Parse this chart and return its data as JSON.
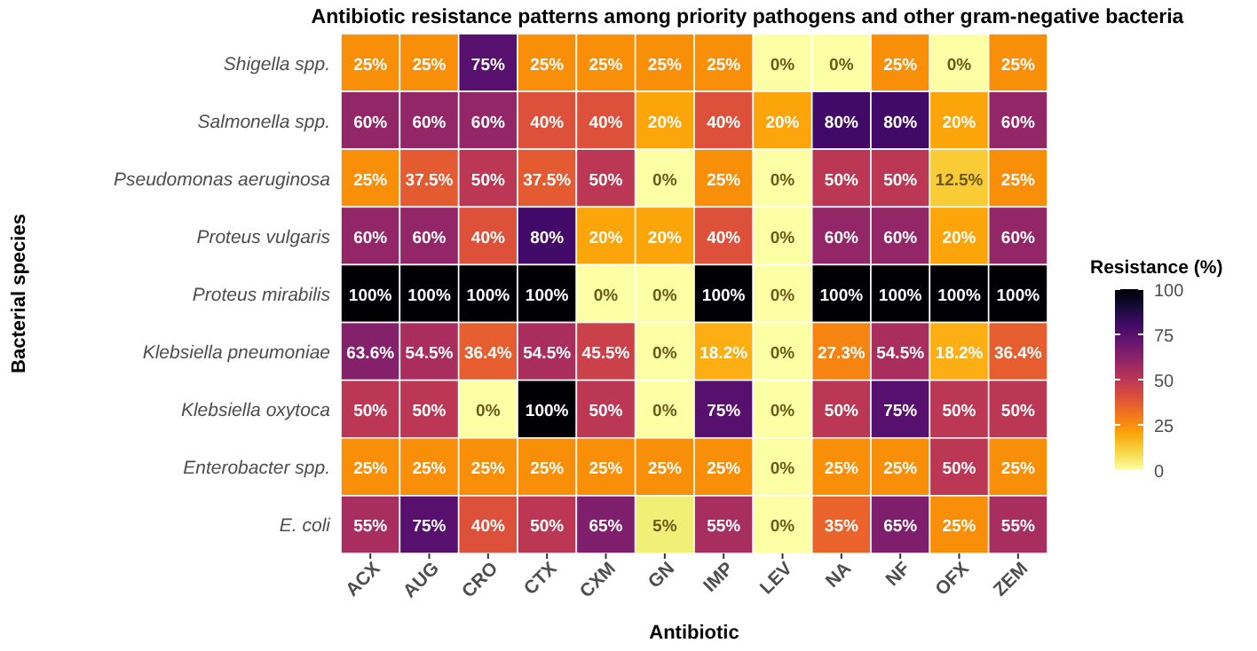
{
  "chart_data": {
    "type": "heatmap",
    "title": "Antibiotic resistance patterns among priority pathogens and other gram-negative bacteria",
    "xlabel": "Antibiotic",
    "ylabel": "Bacterial species",
    "legend_title": "Resistance (%)",
    "categories": [
      "ACX",
      "AUG",
      "CRO",
      "CTX",
      "CXM",
      "GN",
      "IMP",
      "LEV",
      "NA",
      "NF",
      "OFX",
      "ZEM"
    ],
    "y_categories": [
      "Shigella spp.",
      "Salmonella spp.",
      "Pseudomonas aeruginosa",
      "Proteus vulgaris",
      "Proteus mirabilis",
      "Klebsiella pneumoniae",
      "Klebsiella oxytoca",
      "Enterobacter spp.",
      "E. coli"
    ],
    "cells": [
      [
        25,
        25,
        75,
        25,
        25,
        25,
        25,
        0,
        0,
        25,
        0,
        25
      ],
      [
        60,
        60,
        60,
        40,
        40,
        20,
        40,
        20,
        80,
        80,
        20,
        60
      ],
      [
        25,
        37.5,
        50,
        37.5,
        50,
        0,
        25,
        0,
        50,
        50,
        12.5,
        25
      ],
      [
        60,
        60,
        40,
        80,
        20,
        20,
        40,
        0,
        60,
        60,
        20,
        60
      ],
      [
        100,
        100,
        100,
        100,
        0,
        0,
        100,
        0,
        100,
        100,
        100,
        100
      ],
      [
        63.6,
        54.5,
        36.4,
        54.5,
        45.5,
        0,
        18.2,
        0,
        27.3,
        54.5,
        18.2,
        36.4
      ],
      [
        50,
        50,
        0,
        100,
        50,
        0,
        75,
        0,
        50,
        75,
        50,
        50
      ],
      [
        25,
        25,
        25,
        25,
        25,
        25,
        25,
        0,
        25,
        25,
        50,
        25
      ],
      [
        55,
        75,
        40,
        50,
        65,
        5,
        55,
        0,
        35,
        65,
        25,
        55
      ]
    ],
    "cell_labels": [
      [
        "25%",
        "25%",
        "75%",
        "25%",
        "25%",
        "25%",
        "25%",
        "0%",
        "0%",
        "25%",
        "0%",
        "25%"
      ],
      [
        "60%",
        "60%",
        "60%",
        "40%",
        "40%",
        "20%",
        "40%",
        "20%",
        "80%",
        "80%",
        "20%",
        "60%"
      ],
      [
        "25%",
        "37.5%",
        "50%",
        "37.5%",
        "50%",
        "0%",
        "25%",
        "0%",
        "50%",
        "50%",
        "12.5%",
        "25%"
      ],
      [
        "60%",
        "60%",
        "40%",
        "80%",
        "20%",
        "20%",
        "40%",
        "0%",
        "60%",
        "60%",
        "20%",
        "60%"
      ],
      [
        "100%",
        "100%",
        "100%",
        "100%",
        "0%",
        "0%",
        "100%",
        "0%",
        "100%",
        "100%",
        "100%",
        "100%"
      ],
      [
        "63.6%",
        "54.5%",
        "36.4%",
        "54.5%",
        "45.5%",
        "0%",
        "18.2%",
        "0%",
        "27.3%",
        "54.5%",
        "18.2%",
        "36.4%"
      ],
      [
        "50%",
        "50%",
        "0%",
        "100%",
        "50%",
        "0%",
        "75%",
        "0%",
        "50%",
        "75%",
        "50%",
        "50%"
      ],
      [
        "25%",
        "25%",
        "25%",
        "25%",
        "25%",
        "25%",
        "25%",
        "0%",
        "25%",
        "25%",
        "50%",
        "25%"
      ],
      [
        "55%",
        "75%",
        "40%",
        "50%",
        "65%",
        "5%",
        "55%",
        "0%",
        "35%",
        "65%",
        "25%",
        "55%"
      ]
    ],
    "clim": [
      0,
      100
    ],
    "cticks": [
      0,
      25,
      50,
      75,
      100
    ]
  }
}
